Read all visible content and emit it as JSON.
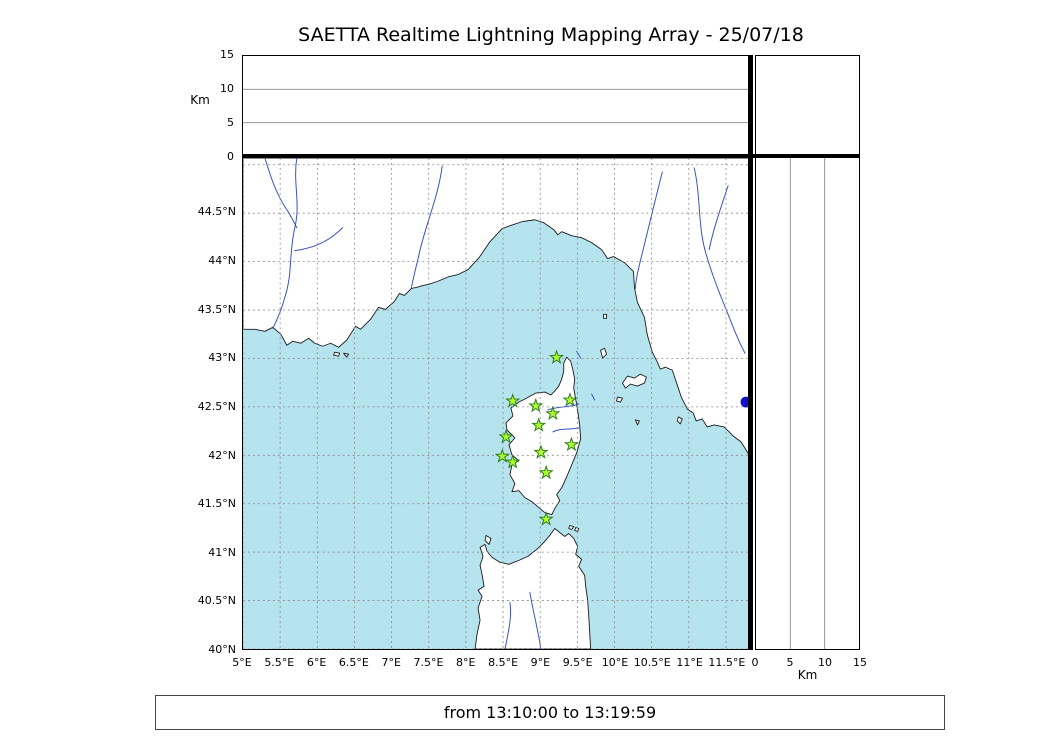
{
  "title": "SAETTA Realtime Lightning Mapping Array - 25/07/18",
  "footer": "from 13:10:00 to 13:19:59",
  "colors": {
    "sea": "#b5e3ee",
    "land": "#ffffff",
    "coastline": "#1a1a1a",
    "river": "#3a53c5",
    "grid": "#8a8a8a",
    "station_fill": "#adff2f",
    "station_edge": "#2f7d1e",
    "source_dot": "#1111cc",
    "frame": "#000000"
  },
  "map_panel": {
    "lon_min": 5.0,
    "lon_max": 11.81,
    "lat_min": 40.0,
    "lat_max": 45.07,
    "grid_step": 0.5,
    "lon_ticks": [
      {
        "value": 5,
        "label": "5°E"
      },
      {
        "value": 5.5,
        "label": "5.5°E"
      },
      {
        "value": 6,
        "label": "6°E"
      },
      {
        "value": 6.5,
        "label": "6.5°E"
      },
      {
        "value": 7,
        "label": "7°E"
      },
      {
        "value": 7.5,
        "label": "7.5°E"
      },
      {
        "value": 8,
        "label": "8°E"
      },
      {
        "value": 8.5,
        "label": "8.5°E"
      },
      {
        "value": 9,
        "label": "9°E"
      },
      {
        "value": 9.5,
        "label": "9.5°E"
      },
      {
        "value": 10,
        "label": "10°E"
      },
      {
        "value": 10.5,
        "label": "10.5°E"
      },
      {
        "value": 11,
        "label": "11°E"
      },
      {
        "value": 11.5,
        "label": "11.5°E"
      }
    ],
    "lat_ticks": [
      {
        "value": 44.5,
        "label": "44.5°N"
      },
      {
        "value": 44,
        "label": "44°N"
      },
      {
        "value": 43.5,
        "label": "43.5°N"
      },
      {
        "value": 43,
        "label": "43°N"
      },
      {
        "value": 42.5,
        "label": "42.5°N"
      },
      {
        "value": 42,
        "label": "42°N"
      },
      {
        "value": 41.5,
        "label": "41.5°N"
      },
      {
        "value": 41,
        "label": "41°N"
      },
      {
        "value": 40.5,
        "label": "40.5°N"
      },
      {
        "value": 40,
        "label": "40°N"
      }
    ]
  },
  "altitude_axis": {
    "label": "Km",
    "min": 0,
    "max": 15,
    "ticks": [
      {
        "value": 0,
        "label": "0"
      },
      {
        "value": 5,
        "label": "5"
      },
      {
        "value": 10,
        "label": "10"
      },
      {
        "value": 15,
        "label": "15"
      }
    ]
  },
  "right_axis": {
    "label": "Km",
    "min": 0,
    "max": 15,
    "ticks": [
      {
        "value": 0,
        "label": "0"
      },
      {
        "value": 5,
        "label": "5"
      },
      {
        "value": 10,
        "label": "10"
      },
      {
        "value": 15,
        "label": "15"
      }
    ]
  },
  "chart_data": {
    "type": "scatter",
    "title": "SAETTA Realtime Lightning Mapping Array - 25/07/18",
    "subtitle": "from 13:10:00 to 13:19:59",
    "panels": [
      {
        "name": "altitude-vs-longitude",
        "xlim": [
          5.0,
          11.81
        ],
        "ylim": [
          0,
          15
        ],
        "ylabel": "Km",
        "yticks": [
          0,
          5,
          10,
          15
        ],
        "grid": true,
        "series": []
      },
      {
        "name": "plan-view",
        "xlim": [
          5.0,
          11.81
        ],
        "ylim": [
          40.0,
          45.07
        ],
        "xticks": [
          5,
          5.5,
          6,
          6.5,
          7,
          7.5,
          8,
          8.5,
          9,
          9.5,
          10,
          10.5,
          11,
          11.5
        ],
        "yticks": [
          40,
          40.5,
          41,
          41.5,
          42,
          42.5,
          43,
          43.5,
          44,
          44.5
        ],
        "grid": true,
        "series": [
          {
            "name": "lma-stations",
            "marker": "star",
            "color": "#adff2f",
            "points": [
              [
                9.22,
                43.01
              ],
              [
                8.63,
                42.56
              ],
              [
                8.94,
                42.51
              ],
              [
                9.4,
                42.57
              ],
              [
                9.17,
                42.43
              ],
              [
                8.98,
                42.31
              ],
              [
                8.54,
                42.19
              ],
              [
                9.42,
                42.11
              ],
              [
                8.49,
                41.99
              ],
              [
                8.63,
                41.93
              ],
              [
                9.01,
                42.03
              ],
              [
                9.08,
                41.82
              ],
              [
                9.08,
                41.34
              ]
            ]
          },
          {
            "name": "lightning-source",
            "marker": "circle",
            "color": "#1111cc",
            "points": [
              [
                11.77,
                42.55
              ]
            ]
          }
        ]
      },
      {
        "name": "altitude-vs-latitude",
        "xlim": [
          0,
          15
        ],
        "ylim": [
          40.0,
          45.07
        ],
        "xlabel": "Km",
        "xticks": [
          0,
          5,
          10,
          15
        ],
        "grid": true,
        "series": []
      },
      {
        "name": "altitude-histogram",
        "series": []
      }
    ]
  }
}
